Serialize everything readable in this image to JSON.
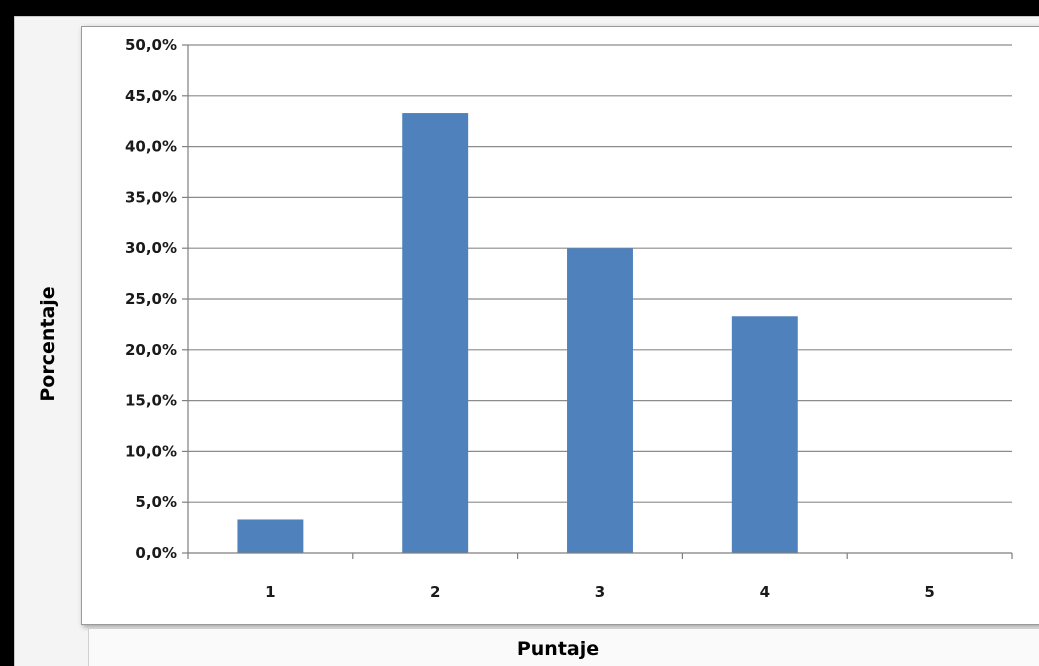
{
  "chart_data": {
    "type": "bar",
    "title": "",
    "xlabel": "Puntaje",
    "ylabel": "Porcentaje",
    "categories": [
      "1",
      "2",
      "3",
      "4",
      "5"
    ],
    "values": [
      3.3,
      43.3,
      30.0,
      23.3,
      0.0
    ],
    "ylim": [
      0,
      50
    ],
    "yticks": [
      "0,0%",
      "5,0%",
      "10,0%",
      "15,0%",
      "20,0%",
      "25,0%",
      "30,0%",
      "35,0%",
      "40,0%",
      "45,0%",
      "50,0%"
    ],
    "grid": true,
    "legend": "none",
    "bar_color": "#4f81bd",
    "grid_color": "#8c8c8c"
  }
}
